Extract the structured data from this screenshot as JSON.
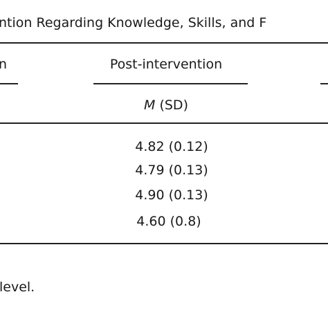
{
  "header": {
    "title": "ntion Regarding Knowledge, Skills, and F"
  },
  "table": {
    "columns": [
      "n",
      "Post-intervention"
    ],
    "subheader": {
      "italic": "M",
      "text": "(SD)"
    },
    "rows": [
      [
        "4.82 (0.12)"
      ],
      [
        "4.79 (0.13)"
      ],
      [
        "4.90 (0.13)"
      ],
      [
        "4.60 (0.8)"
      ]
    ]
  },
  "footnote": "level."
}
